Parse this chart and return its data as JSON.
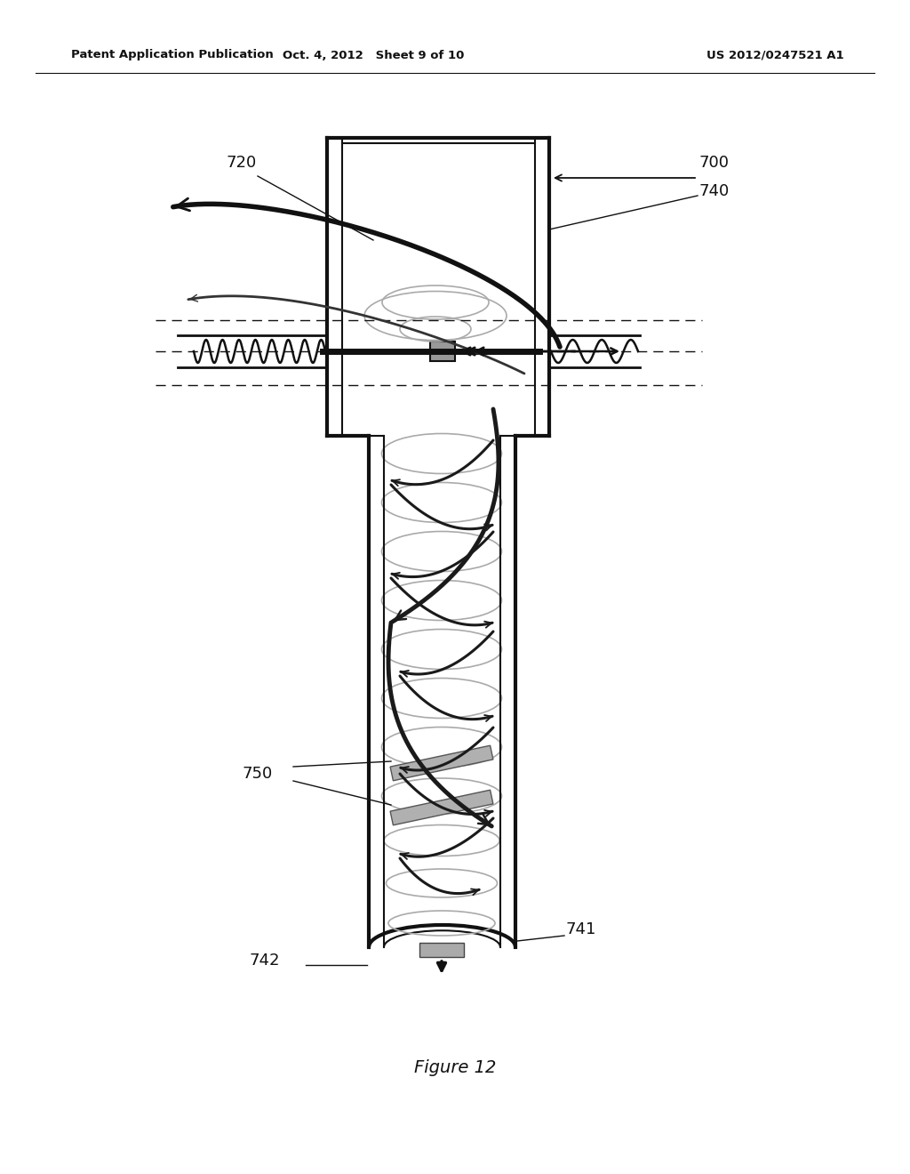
{
  "title": "Figure 12",
  "header_left": "Patent Application Publication",
  "header_center": "Oct. 4, 2012   Sheet 9 of 10",
  "header_right": "US 2012/0247521 A1",
  "bg_color": "#ffffff",
  "black": "#111111",
  "dark_gray": "#333333",
  "mid_gray": "#888888",
  "light_gray": "#bbbbbb"
}
